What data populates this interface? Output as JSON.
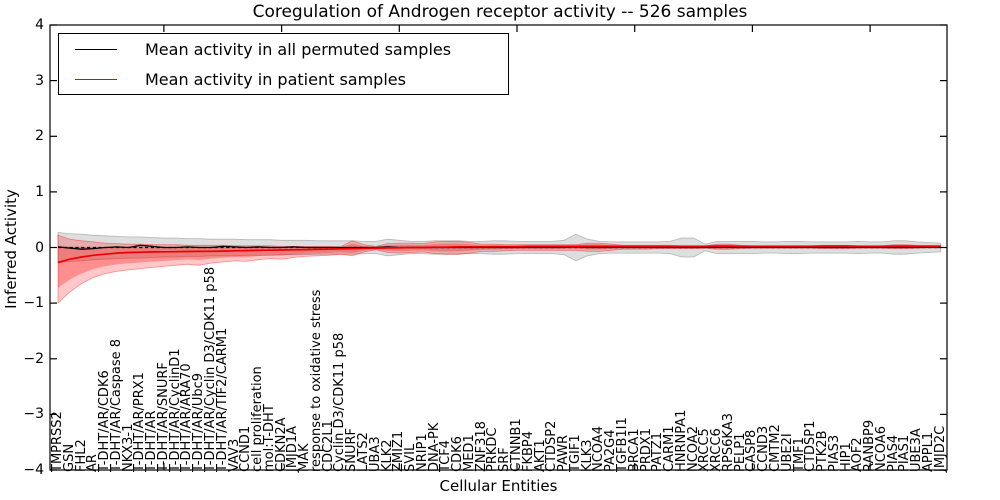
{
  "title": "Coregulation of Androgen receptor activity -- 526 samples",
  "legend": {
    "items": [
      {
        "label": "Mean activity in all permuted samples",
        "color": "#000000"
      },
      {
        "label": "Mean activity in patient samples",
        "color": "#ee0000"
      }
    ]
  },
  "axes": {
    "xlabel": "Cellular Entities",
    "ylabel": "Inferred Activity",
    "ytick_labels": [
      "4",
      "3",
      "2",
      "1",
      "0",
      "−1",
      "−2",
      "−3",
      "−4"
    ],
    "ytick_values": [
      4,
      3,
      2,
      1,
      0,
      -1,
      -2,
      -3,
      -4
    ],
    "x_major_ticks": [
      10,
      20,
      30,
      40,
      50,
      60,
      70
    ]
  },
  "chart_data": {
    "type": "line",
    "title": "Coregulation of Androgen receptor activity -- 526 samples",
    "xlabel": "Cellular Entities",
    "ylabel": "Inferred Activity",
    "ylim": [
      -4,
      4
    ],
    "grid": false,
    "legend_position": "upper left",
    "zero_reference_line": {
      "style": "dashed",
      "color": "#000000",
      "y": 0
    },
    "categories": [
      "TMPRSS2",
      "GSN",
      "FHL2",
      "AR",
      "T-DHT/AR/CDK6",
      "T-DHT/AR/Caspase 8",
      "NKX3-1",
      "T-DHT/AR/PRX1",
      "T-DHT/AR",
      "T-DHT/AR/SNURF",
      "T-DHT/AR/CyclinD1",
      "T-DHT/AR/ARA70",
      "T-DHT/AR/Ubc9",
      "T-DHT/AR/Cyclin D3/CDK11 p58",
      "T-DHT/AR/TIF2/CARM1",
      "VAV3",
      "CCND1",
      "cell proliferation",
      "mol:T-DHT",
      "CDKN2A",
      "JMJD1A",
      "MAK",
      "response to oxidative stress",
      "CDC2L1",
      "Cyclin D3/CDK11 p58",
      "SNURF",
      "LATS2",
      "UBA3",
      "KLK2",
      "ZMIZ1",
      "SVIL",
      "NRIP1",
      "DNA-PK",
      "TCF4",
      "CDK6",
      "MED1",
      "ZNF318",
      "PRKDC",
      "SRF",
      "CTNNB1",
      "FKBP4",
      "AKT1",
      "CTDSP2",
      "PAWR",
      "TGIF1",
      "KLK3",
      "NCOA4",
      "PA2G4",
      "TGFB1I1",
      "BRCA1",
      "PRDX1",
      "PATZ1",
      "CARM1",
      "HNRNPA1",
      "NCOA2",
      "XRCC5",
      "XRCC6",
      "RPS6KA3",
      "PELP1",
      "CASP8",
      "CCND3",
      "CMTM2",
      "UBE2I",
      "TMF1",
      "CTDSP1",
      "PTK2B",
      "PIAS3",
      "HIP1",
      "AOF2",
      "RANBP9",
      "NCOA6",
      "PIAS4",
      "PIAS1",
      "UBE3A",
      "APPL1",
      "JMJD2C"
    ],
    "series": [
      {
        "name": "Mean activity in all permuted samples",
        "color": "#000000",
        "band_color": "#888888",
        "values": [
          0.01,
          -0.01,
          -0.03,
          -0.02,
          0,
          0.01,
          0,
          0.04,
          0.02,
          0,
          0,
          0.01,
          0,
          0,
          0.02,
          0.01,
          0,
          0.01,
          0,
          0,
          0.01,
          0,
          0,
          0,
          0,
          0,
          0,
          0,
          0.01,
          0,
          0,
          0,
          0,
          0,
          0,
          0,
          0,
          0,
          0,
          0,
          0,
          0,
          0,
          0,
          0.01,
          0,
          0,
          0,
          0,
          0,
          0,
          0,
          0,
          0,
          0,
          0,
          0,
          0,
          0,
          0,
          0,
          0,
          0,
          0,
          0,
          0,
          0,
          0,
          0,
          0,
          0,
          0,
          0,
          0,
          0,
          0
        ],
        "band_hi": [
          0.27,
          0.25,
          0.24,
          0.22,
          0.21,
          0.2,
          0.19,
          0.19,
          0.18,
          0.17,
          0.17,
          0.16,
          0.16,
          0.15,
          0.15,
          0.15,
          0.14,
          0.14,
          0.14,
          0.13,
          0.13,
          0.13,
          0.12,
          0.12,
          0.12,
          0.12,
          0.11,
          0.11,
          0.15,
          0.13,
          0.11,
          0.11,
          0.12,
          0.12,
          0.12,
          0.11,
          0.11,
          0.12,
          0.12,
          0.11,
          0.11,
          0.11,
          0.11,
          0.13,
          0.24,
          0.15,
          0.11,
          0.1,
          0.1,
          0.1,
          0.1,
          0.1,
          0.11,
          0.17,
          0.17,
          0.06,
          0.11,
          0.11,
          0.11,
          0.11,
          0.1,
          0.1,
          0.11,
          0.11,
          0.1,
          0.1,
          0.1,
          0.1,
          0.11,
          0.1,
          0.1,
          0.12,
          0.12,
          0.1,
          0.09,
          0.08
        ],
        "band_lo": [
          -0.27,
          -0.25,
          -0.24,
          -0.22,
          -0.21,
          -0.2,
          -0.19,
          -0.19,
          -0.18,
          -0.17,
          -0.17,
          -0.16,
          -0.16,
          -0.15,
          -0.15,
          -0.15,
          -0.14,
          -0.14,
          -0.14,
          -0.13,
          -0.13,
          -0.13,
          -0.12,
          -0.12,
          -0.12,
          -0.12,
          -0.11,
          -0.11,
          -0.15,
          -0.13,
          -0.11,
          -0.11,
          -0.12,
          -0.12,
          -0.12,
          -0.11,
          -0.11,
          -0.12,
          -0.12,
          -0.11,
          -0.11,
          -0.11,
          -0.11,
          -0.13,
          -0.24,
          -0.15,
          -0.11,
          -0.1,
          -0.1,
          -0.1,
          -0.1,
          -0.1,
          -0.11,
          -0.17,
          -0.17,
          -0.06,
          -0.11,
          -0.11,
          -0.11,
          -0.11,
          -0.1,
          -0.1,
          -0.11,
          -0.11,
          -0.1,
          -0.1,
          -0.1,
          -0.1,
          -0.11,
          -0.1,
          -0.1,
          -0.12,
          -0.12,
          -0.1,
          -0.09,
          -0.08
        ]
      },
      {
        "name": "Mean activity in patient samples",
        "color": "#ee0000",
        "band_color": "#ff0000",
        "values": [
          -0.27,
          -0.21,
          -0.17,
          -0.14,
          -0.12,
          -0.1,
          -0.09,
          -0.085,
          -0.08,
          -0.078,
          -0.075,
          -0.072,
          -0.07,
          -0.068,
          -0.065,
          -0.06,
          -0.055,
          -0.05,
          -0.048,
          -0.045,
          -0.042,
          -0.04,
          -0.035,
          -0.03,
          -0.025,
          -0.02,
          -0.015,
          -0.01,
          -0.008,
          -0.005,
          0,
          0,
          0.005,
          0.005,
          0.01,
          0.01,
          0.01,
          0.015,
          0.015,
          0.015,
          0.02,
          0.02,
          0.02,
          0.02,
          0.02,
          0.02,
          0.02,
          0.02,
          0.02,
          0.02,
          0.02,
          0.02,
          0.02,
          0.02,
          0.02,
          0.02,
          0.025,
          0.025,
          0.02,
          0.02,
          0.02,
          0.02,
          0.02,
          0.02,
          0.02,
          0.025,
          0.025,
          0.025,
          0.02,
          0.02,
          0.02,
          0.025,
          0.025,
          0.02,
          0.02,
          0.02
        ],
        "band_hi": [
          0.22,
          0.15,
          0.12,
          0.1,
          0.08,
          0.07,
          0.06,
          0.06,
          0.05,
          0.05,
          0.05,
          0.04,
          0.04,
          0.04,
          0.04,
          0.03,
          0.03,
          0.03,
          0.03,
          0.02,
          0.02,
          0.02,
          0.02,
          0.02,
          0.01,
          0.12,
          0.05,
          0.02,
          0.07,
          0.08,
          0.08,
          0.07,
          0.1,
          0.11,
          0.11,
          0.09,
          0.06,
          0.06,
          0.05,
          0.05,
          0.05,
          0.05,
          0.05,
          0.05,
          0.05,
          0.08,
          0.08,
          0.06,
          0.04,
          0.04,
          0.04,
          0.04,
          0.04,
          0.03,
          0.03,
          0.03,
          0.06,
          0.06,
          0.04,
          0.03,
          0.03,
          0.03,
          0.03,
          0.03,
          0.03,
          0.04,
          0.04,
          0.04,
          0.03,
          0.03,
          0.03,
          0.05,
          0.05,
          0.04,
          0.04,
          0.04
        ],
        "band_lo": [
          -1.0,
          -0.8,
          -0.65,
          -0.54,
          -0.47,
          -0.43,
          -0.4,
          -0.38,
          -0.36,
          -0.34,
          -0.32,
          -0.3,
          -0.32,
          -0.28,
          -0.26,
          -0.24,
          -0.25,
          -0.22,
          -0.2,
          -0.21,
          -0.18,
          -0.16,
          -0.15,
          -0.14,
          -0.12,
          -0.15,
          -0.08,
          -0.04,
          -0.09,
          -0.1,
          -0.09,
          -0.08,
          -0.11,
          -0.12,
          -0.12,
          -0.1,
          -0.07,
          -0.07,
          -0.06,
          -0.05,
          -0.05,
          -0.05,
          -0.05,
          -0.05,
          -0.05,
          -0.07,
          -0.07,
          -0.05,
          -0.03,
          -0.03,
          -0.03,
          -0.02,
          -0.02,
          -0.02,
          -0.02,
          -0.01,
          -0.03,
          -0.03,
          -0.02,
          -0.01,
          -0.01,
          -0.01,
          -0.01,
          -0.01,
          -0.01,
          -0.02,
          -0.02,
          -0.02,
          -0.01,
          -0.01,
          -0.01,
          -0.02,
          -0.02,
          -0.01,
          0,
          0
        ]
      }
    ]
  }
}
